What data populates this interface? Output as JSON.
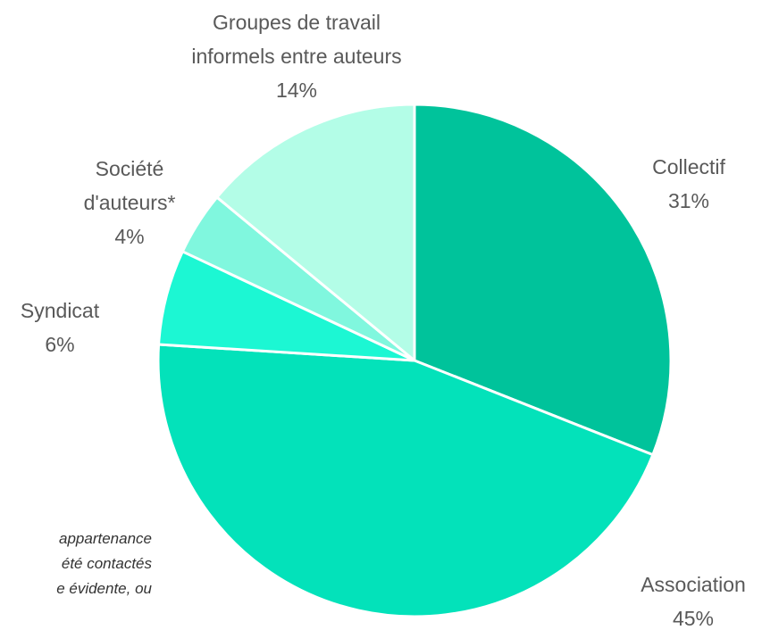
{
  "chart_data": {
    "type": "pie",
    "categories": [
      "Collectif",
      "Association",
      "Syndicat",
      "Société\nd'auteurs*",
      "Groupes de travail\ninformels entre auteurs"
    ],
    "values": [
      31,
      45,
      6,
      4,
      14
    ],
    "value_labels": [
      "31%",
      "45%",
      "6%",
      "4%",
      "14%"
    ],
    "colors": [
      "#00c39b",
      "#03e2ba",
      "#1cf7d3",
      "#80f7de",
      "#b3fde7"
    ],
    "annotation": "appartenance\nété contactés\ne évidente, ou"
  }
}
